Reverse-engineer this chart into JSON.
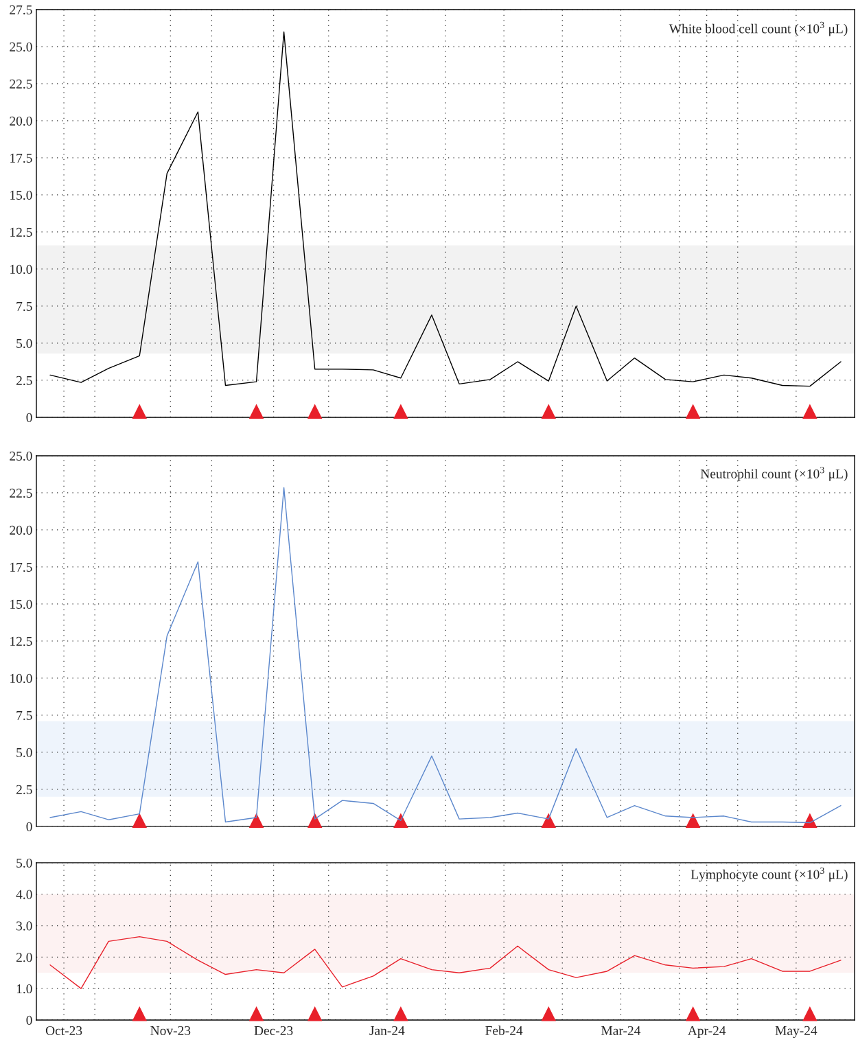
{
  "chart_data": [
    {
      "type": "line",
      "title": "White blood cell count (×10$^{3}$ μL)",
      "x": [
        "2023-09-27",
        "2023-10-06",
        "2023-10-14",
        "2023-10-23",
        "2023-10-31",
        "2023-11-09",
        "2023-11-17",
        "2023-11-26",
        "2023-12-04",
        "2023-12-13",
        "2023-12-21",
        "2023-12-30",
        "2024-01-07",
        "2024-01-16",
        "2024-01-24",
        "2024-02-02",
        "2024-02-10",
        "2024-02-19",
        "2024-02-27",
        "2024-03-07",
        "2024-03-15",
        "2024-03-24",
        "2024-04-01",
        "2024-04-10",
        "2024-04-18",
        "2024-04-27",
        "2024-05-05",
        "2024-05-14"
      ],
      "series": [
        {
          "color": "#000000",
          "values": [
            2.85,
            2.35,
            3.3,
            4.15,
            16.45,
            20.6,
            2.15,
            2.4,
            26.0,
            3.25,
            3.25,
            3.2,
            2.65,
            6.9,
            2.25,
            2.55,
            3.75,
            2.45,
            7.5,
            2.45,
            4.0,
            2.55,
            2.4,
            2.85,
            2.65,
            2.15,
            2.1,
            3.75
          ]
        },
        {
          "type": "scatter",
          "marker": "triangle",
          "color": "#e8202a",
          "x": [
            "2023-10-23",
            "2023-11-26",
            "2023-12-13",
            "2024-01-07",
            "2024-02-19",
            "2024-04-01",
            "2024-05-05"
          ],
          "values": [
            0.4,
            0.4,
            0.4,
            0.4,
            0.4,
            0.4,
            0.4
          ]
        }
      ],
      "bands": [
        {
          "axis": "y",
          "from": 4.3,
          "to": 11.6,
          "color": "#f2f2f2"
        }
      ],
      "xlim": [
        "2023-09-23",
        "2024-05-18"
      ],
      "xticks": [
        "2023-10-01",
        "2023-10-10",
        "2023-11-01",
        "2023-11-13",
        "2023-12-01",
        "2023-12-17",
        "2024-01-03",
        "2024-01-20",
        "2024-02-06",
        "2024-02-23",
        "2024-03-11",
        "2024-03-28",
        "2024-04-05",
        "2024-04-14",
        "2024-05-01"
      ],
      "ylim": [
        0,
        27.5
      ],
      "yticks": [
        0,
        {
          "value": 2.5,
          "label": "2.5"
        },
        {
          "value": 5,
          "label": "5.0"
        },
        {
          "value": 7.5,
          "label": "7.5"
        },
        {
          "value": 10,
          "label": "10.0"
        },
        {
          "value": 12.5,
          "label": "12.5"
        },
        {
          "value": 15,
          "label": "15.0"
        },
        {
          "value": 17.5,
          "label": "17.5"
        },
        {
          "value": 20,
          "label": "20.0"
        },
        {
          "value": 22.5,
          "label": "22.5"
        },
        {
          "value": 25,
          "label": "25.0"
        },
        {
          "value": 27.5,
          "label": "27.5"
        }
      ],
      "grid": true,
      "tick_labels": "y"
    },
    {
      "type": "line",
      "title": "Neutrophil count (×10$^{3}$ μL)",
      "x": [
        "2023-09-27",
        "2023-10-06",
        "2023-10-14",
        "2023-10-23",
        "2023-10-31",
        "2023-11-09",
        "2023-11-17",
        "2023-11-26",
        "2023-12-04",
        "2023-12-13",
        "2023-12-21",
        "2023-12-30",
        "2024-01-07",
        "2024-01-16",
        "2024-01-24",
        "2024-02-02",
        "2024-02-10",
        "2024-02-19",
        "2024-02-27",
        "2024-03-07",
        "2024-03-15",
        "2024-03-24",
        "2024-04-01",
        "2024-04-10",
        "2024-04-18",
        "2024-04-27",
        "2024-05-05",
        "2024-05-14"
      ],
      "series": [
        {
          "color": "#5b87cc",
          "values": [
            0.6,
            1.0,
            0.45,
            0.85,
            12.85,
            17.85,
            0.3,
            0.6,
            22.85,
            0.5,
            1.75,
            1.55,
            0.4,
            4.75,
            0.5,
            0.6,
            0.9,
            0.5,
            5.25,
            0.6,
            1.4,
            0.7,
            0.6,
            0.7,
            0.3,
            0.3,
            0.25,
            1.4
          ]
        },
        {
          "type": "scatter",
          "marker": "triangle",
          "color": "#e8202a",
          "x": [
            "2023-10-23",
            "2023-11-26",
            "2023-12-13",
            "2024-01-07",
            "2024-02-19",
            "2024-04-01",
            "2024-05-05"
          ],
          "values": [
            0.4,
            0.4,
            0.4,
            0.4,
            0.4,
            0.4,
            0.4
          ]
        }
      ],
      "bands": [
        {
          "axis": "y",
          "from": 2.0,
          "to": 7.1,
          "color": "#eef4fc"
        }
      ],
      "xlim": [
        "2023-09-23",
        "2024-05-18"
      ],
      "xticks": [
        "2023-10-01",
        "2023-10-10",
        "2023-11-01",
        "2023-11-13",
        "2023-12-01",
        "2023-12-17",
        "2024-01-03",
        "2024-01-20",
        "2024-02-06",
        "2024-02-23",
        "2024-03-11",
        "2024-03-28",
        "2024-04-05",
        "2024-04-14",
        "2024-05-01"
      ],
      "ylim": [
        0,
        25
      ],
      "yticks": [
        0,
        {
          "value": 2.5,
          "label": "2.5"
        },
        {
          "value": 5,
          "label": "5.0"
        },
        {
          "value": 7.5,
          "label": "7.5"
        },
        {
          "value": 10,
          "label": "10.0"
        },
        {
          "value": 12.5,
          "label": "12.5"
        },
        {
          "value": 15,
          "label": "15.0"
        },
        {
          "value": 17.5,
          "label": "17.5"
        },
        {
          "value": 20,
          "label": "20.0"
        },
        {
          "value": 22.5,
          "label": "22.5"
        },
        {
          "value": 25,
          "label": "25.0"
        }
      ],
      "grid": true,
      "tick_labels": "y"
    },
    {
      "type": "line",
      "title": "Lymphocyte count (×10$^{3}$ μL)",
      "x": [
        "2023-09-27",
        "2023-10-06",
        "2023-10-14",
        "2023-10-23",
        "2023-10-31",
        "2023-11-09",
        "2023-11-17",
        "2023-11-26",
        "2023-12-04",
        "2023-12-13",
        "2023-12-21",
        "2023-12-30",
        "2024-01-07",
        "2024-01-16",
        "2024-01-24",
        "2024-02-02",
        "2024-02-10",
        "2024-02-19",
        "2024-02-27",
        "2024-03-07",
        "2024-03-15",
        "2024-03-24",
        "2024-04-01",
        "2024-04-10",
        "2024-04-18",
        "2024-04-27",
        "2024-05-05",
        "2024-05-14"
      ],
      "series": [
        {
          "color": "#e8202a",
          "values": [
            1.75,
            1.0,
            2.5,
            2.65,
            2.5,
            1.9,
            1.45,
            1.6,
            1.5,
            2.25,
            1.05,
            1.4,
            1.95,
            1.6,
            1.5,
            1.65,
            2.35,
            1.6,
            1.35,
            1.55,
            2.05,
            1.75,
            1.65,
            1.7,
            1.95,
            1.55,
            1.55,
            1.9
          ]
        },
        {
          "type": "scatter",
          "marker": "triangle",
          "color": "#e8202a",
          "x": [
            "2023-10-23",
            "2023-11-26",
            "2023-12-13",
            "2024-01-07",
            "2024-02-19",
            "2024-04-01",
            "2024-05-05"
          ],
          "values": [
            0.2,
            0.2,
            0.2,
            0.2,
            0.2,
            0.2,
            0.2
          ]
        }
      ],
      "bands": [
        {
          "axis": "y",
          "from": 1.5,
          "to": 4.0,
          "color": "#fdf2f2"
        }
      ],
      "xlim": [
        "2023-09-23",
        "2024-05-18"
      ],
      "xticks": [
        {
          "value": "2023-10-01",
          "label": "Oct-23"
        },
        {
          "value": "2023-10-10",
          "label": null
        },
        {
          "value": "2023-11-01",
          "label": "Nov-23"
        },
        {
          "value": "2023-11-13",
          "label": null
        },
        {
          "value": "2023-12-01",
          "label": "Dec-23"
        },
        {
          "value": "2023-12-17",
          "label": null
        },
        {
          "value": "2024-01-03",
          "label": "Jan-24"
        },
        {
          "value": "2024-01-20",
          "label": null
        },
        {
          "value": "2024-02-06",
          "label": "Feb-24"
        },
        {
          "value": "2024-02-23",
          "label": null
        },
        {
          "value": "2024-03-11",
          "label": "Mar-24"
        },
        {
          "value": "2024-03-28",
          "label": null
        },
        {
          "value": "2024-04-05",
          "label": "Apr-24"
        },
        {
          "value": "2024-04-14",
          "label": null
        },
        {
          "value": "2024-05-01",
          "label": "May-24"
        }
      ],
      "ylim": [
        0,
        5
      ],
      "yticks": [
        0,
        {
          "value": 1,
          "label": "1.0"
        },
        {
          "value": 2,
          "label": "2.0"
        },
        {
          "value": 3,
          "label": "3.0"
        },
        {
          "value": 4,
          "label": "4.0"
        },
        {
          "value": 5,
          "label": "5.0"
        }
      ],
      "grid": true
    }
  ]
}
